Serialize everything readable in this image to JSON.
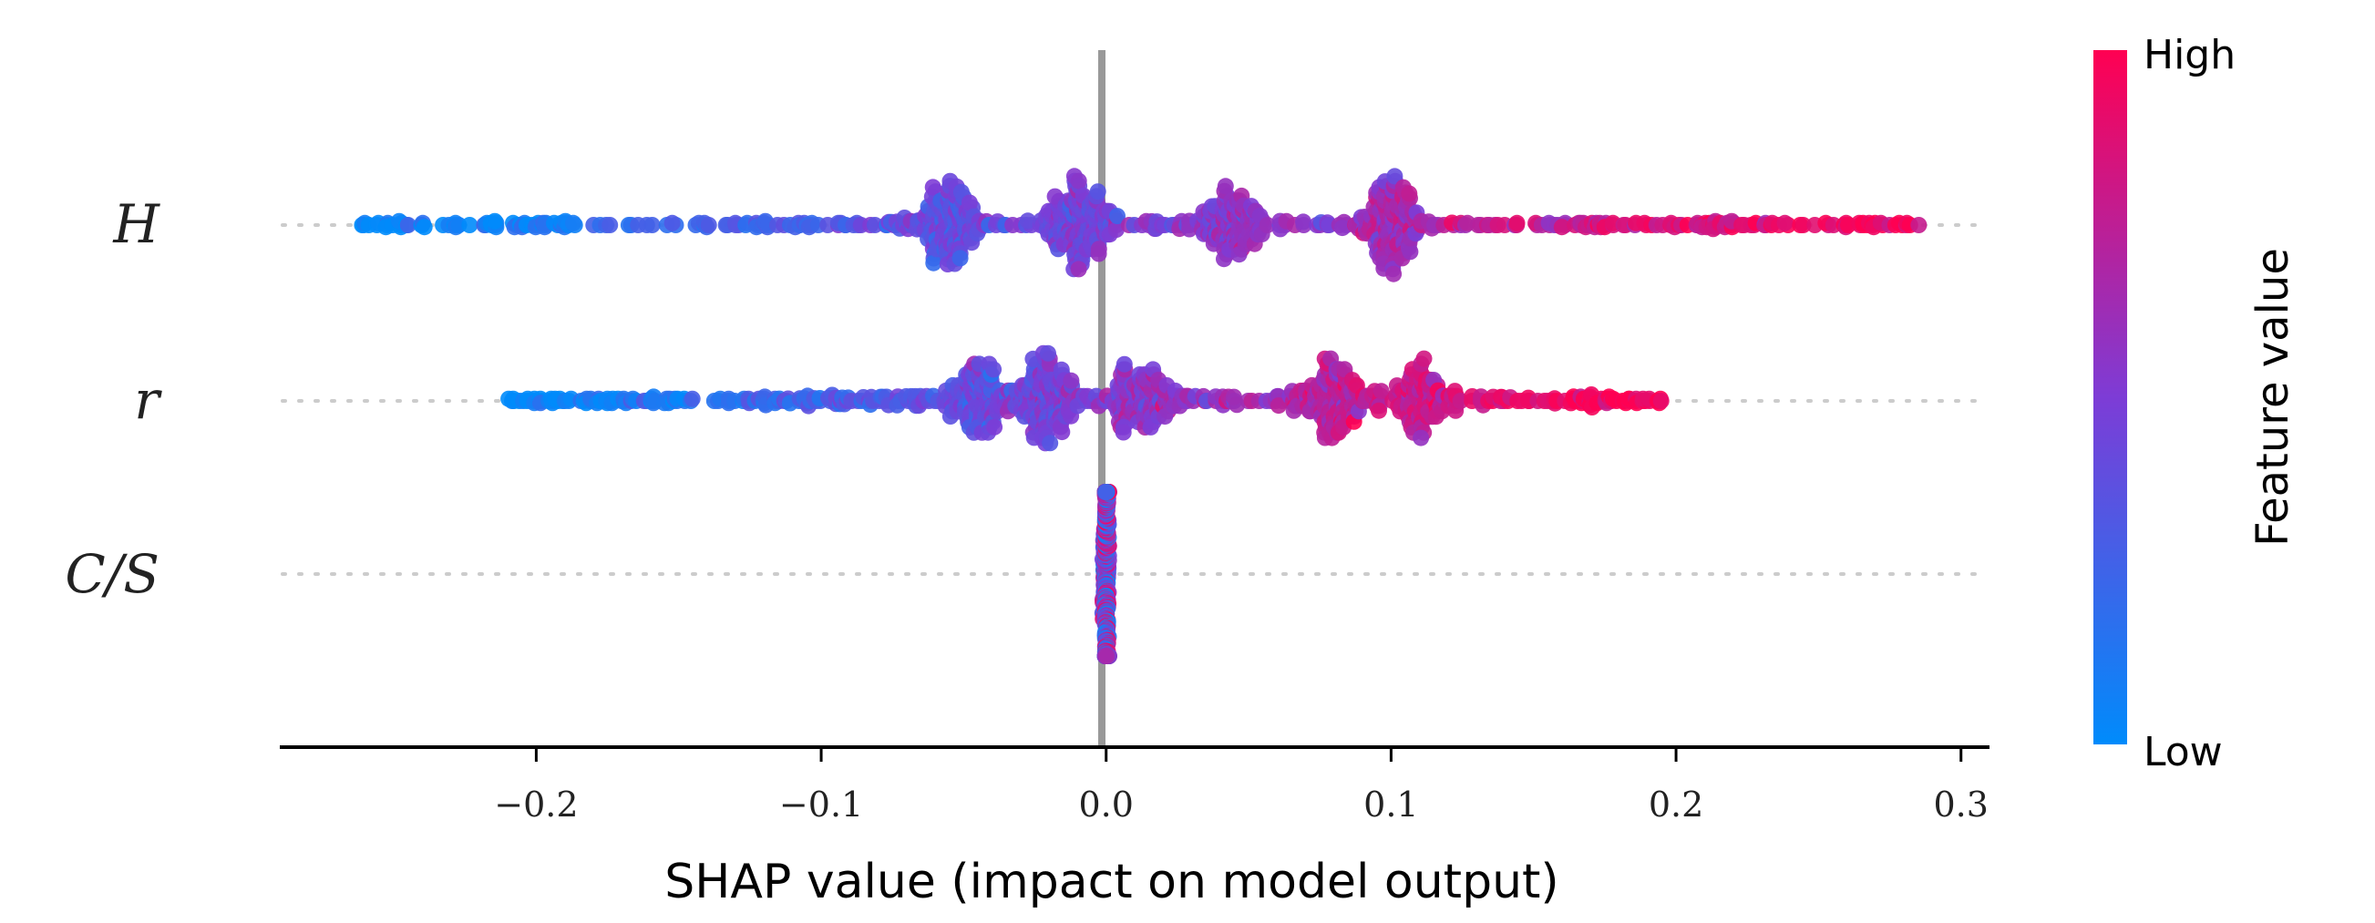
{
  "chart_data": {
    "type": "scatter",
    "subtype": "shap-beeswarm",
    "title": "",
    "xlabel": "SHAP value (impact on model output)",
    "ylabel": "",
    "xlim": [
      -0.29,
      0.31
    ],
    "xticks": [
      -0.2,
      -0.1,
      0.0,
      0.1,
      0.2,
      0.3
    ],
    "xtick_labels": [
      "−0.2",
      "−0.1",
      "0.0",
      "0.1",
      "0.2",
      "0.3"
    ],
    "grid": false,
    "zero_line": true,
    "colorbar": {
      "title": "Feature value",
      "high_label": "High",
      "low_label": "Low",
      "low_color": "#008bfb",
      "mid_color": "#7d3cd6",
      "high_color": "#ff0052"
    },
    "features": [
      {
        "name": "H",
        "shap_range": [
          -0.265,
          0.29
        ],
        "dense_clusters": [
          {
            "x": -0.056,
            "spread": 0.022
          },
          {
            "x": -0.01,
            "spread": 0.04
          },
          {
            "x": 0.045,
            "spread": 0.03
          },
          {
            "x": 0.1,
            "spread": 0.018
          }
        ]
      },
      {
        "name": "r",
        "shap_range": [
          -0.21,
          0.195
        ],
        "dense_clusters": [
          {
            "x": -0.045,
            "spread": 0.052
          },
          {
            "x": -0.022,
            "spread": 0.038
          },
          {
            "x": 0.012,
            "spread": 0.05
          },
          {
            "x": 0.08,
            "spread": 0.045
          },
          {
            "x": 0.11,
            "spread": 0.04
          }
        ]
      },
      {
        "name": "C/S",
        "shap_range": [
          0.0,
          0.0
        ],
        "dense_clusters": [
          {
            "x": 0.0,
            "spread": 0.04
          }
        ]
      }
    ]
  }
}
